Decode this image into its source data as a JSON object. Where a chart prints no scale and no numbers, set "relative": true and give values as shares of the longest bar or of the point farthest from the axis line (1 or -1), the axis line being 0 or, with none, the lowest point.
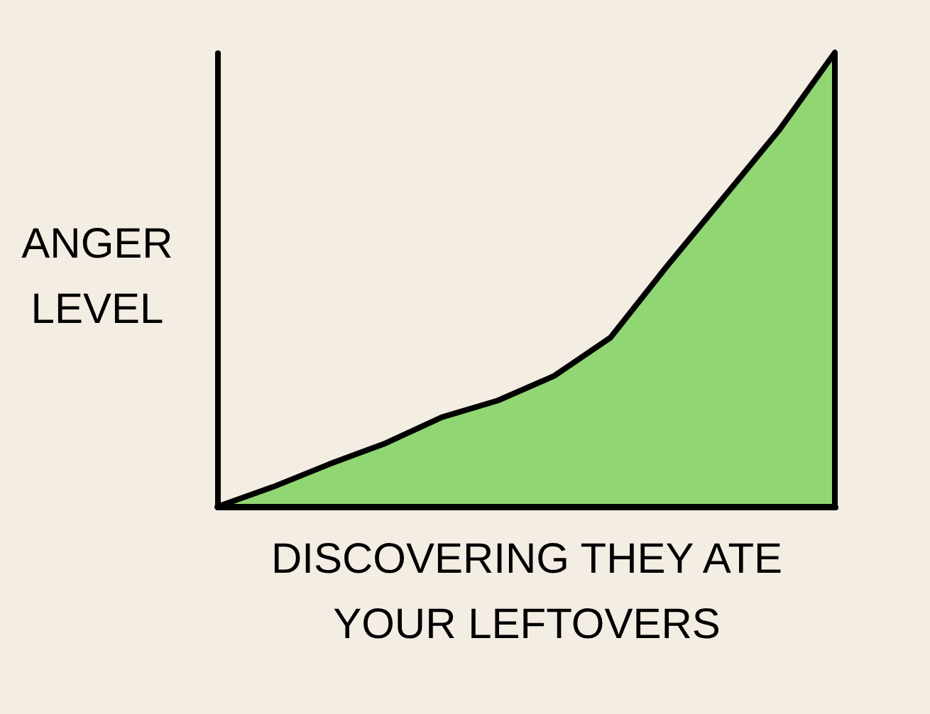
{
  "chart_data": {
    "type": "area",
    "xlabel": "DISCOVERING THEY ATE YOUR LEFTOVERS",
    "ylabel": "ANGER LEVEL",
    "relative": true,
    "tick_labels": false,
    "grid": false,
    "categories": [
      null,
      null,
      null,
      null,
      null,
      null,
      null,
      null,
      null,
      null,
      null,
      null
    ],
    "series": [
      {
        "color": "#90d672",
        "values": [
          0,
          0.044,
          0.094,
          0.14,
          0.197,
          0.234,
          0.288,
          0.372,
          0.528,
          0.678,
          0.828,
          1
        ]
      }
    ]
  }
}
